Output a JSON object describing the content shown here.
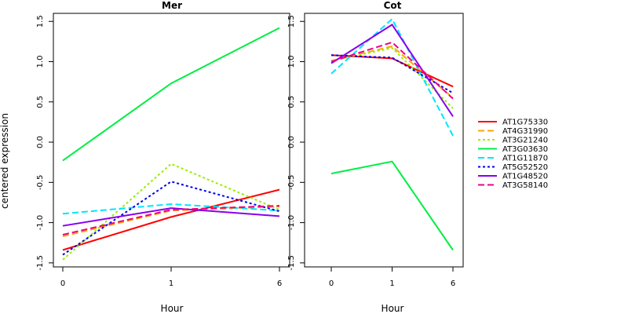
{
  "chart_data": {
    "type": "line",
    "ylabel": "centered expression",
    "xlabel": "Hour",
    "x": [
      "0",
      "1",
      "6"
    ],
    "ylim": [
      -1.55,
      1.6
    ],
    "y_ticks": [
      "-1.5",
      "-1.0",
      "-0.5",
      "0.0",
      "0.5",
      "1.0",
      "1.5"
    ],
    "grid": false,
    "legend_position": "right",
    "series_styles": [
      {
        "name": "AT1G75330",
        "color": "#FF0000",
        "dash": "solid"
      },
      {
        "name": "AT4G31990",
        "color": "#FFA500",
        "dash": "dashed"
      },
      {
        "name": "AT3G21240",
        "color": "#99EE00",
        "dash": "dotted"
      },
      {
        "name": "AT3G03630",
        "color": "#00EE44",
        "dash": "solid"
      },
      {
        "name": "AT1G11870",
        "color": "#00E5FF",
        "dash": "dashed"
      },
      {
        "name": "AT5G52520",
        "color": "#0000EE",
        "dash": "dotted"
      },
      {
        "name": "AT1G48520",
        "color": "#8800EE",
        "dash": "solid"
      },
      {
        "name": "AT3G58140",
        "color": "#EE0088",
        "dash": "dashed"
      }
    ],
    "panels": [
      {
        "title": "Mer",
        "series": [
          {
            "name": "AT1G75330",
            "values": [
              -1.34,
              -0.93,
              -0.59
            ]
          },
          {
            "name": "AT4G31990",
            "values": [
              -1.17,
              -0.85,
              -0.8
            ]
          },
          {
            "name": "AT3G21240",
            "values": [
              -1.46,
              -0.27,
              -0.84
            ]
          },
          {
            "name": "AT3G03630",
            "values": [
              -0.23,
              0.73,
              1.42
            ]
          },
          {
            "name": "AT1G11870",
            "values": [
              -0.89,
              -0.77,
              -0.85
            ]
          },
          {
            "name": "AT5G52520",
            "values": [
              -1.4,
              -0.49,
              -0.86
            ]
          },
          {
            "name": "AT1G48520",
            "values": [
              -1.04,
              -0.82,
              -0.92
            ]
          },
          {
            "name": "AT3G58140",
            "values": [
              -1.15,
              -0.84,
              -0.79
            ]
          }
        ]
      },
      {
        "title": "Cot",
        "series": [
          {
            "name": "AT1G75330",
            "values": [
              1.08,
              1.04,
              0.69
            ]
          },
          {
            "name": "AT4G31990",
            "values": [
              1.01,
              1.19,
              0.55
            ]
          },
          {
            "name": "AT3G21240",
            "values": [
              1.01,
              1.17,
              0.42
            ]
          },
          {
            "name": "AT3G03630",
            "values": [
              -0.39,
              -0.24,
              -1.34
            ]
          },
          {
            "name": "AT1G11870",
            "values": [
              0.85,
              1.53,
              0.08
            ]
          },
          {
            "name": "AT5G52520",
            "values": [
              1.08,
              1.05,
              0.61
            ]
          },
          {
            "name": "AT1G48520",
            "values": [
              0.98,
              1.46,
              0.32
            ]
          },
          {
            "name": "AT3G58140",
            "values": [
              1.0,
              1.24,
              0.54
            ]
          }
        ]
      }
    ]
  }
}
